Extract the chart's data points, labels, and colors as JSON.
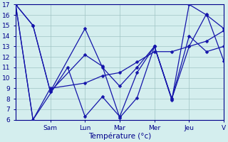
{
  "background_color": "#d4eeee",
  "grid_color": "#a0c4c4",
  "line_color": "#1414aa",
  "xlabel": "Température (°c)",
  "ylim": [
    6,
    17
  ],
  "yticks": [
    6,
    7,
    8,
    9,
    10,
    11,
    12,
    13,
    14,
    15,
    16,
    17
  ],
  "n_cols": 24,
  "day_tick_positions": [
    4,
    8,
    12,
    16,
    20,
    24
  ],
  "day_labels": [
    "Sam",
    "Lun",
    "Mar",
    "Mer",
    "Jeu",
    "V"
  ],
  "series": [
    {
      "x": [
        0,
        2,
        4,
        8,
        10,
        12,
        14,
        16,
        18,
        20,
        22,
        24
      ],
      "y": [
        17,
        15,
        8.7,
        14.7,
        11,
        9.2,
        11,
        13,
        8,
        14,
        12.5,
        13
      ]
    },
    {
      "x": [
        0,
        2,
        6,
        8,
        10,
        12,
        14,
        16,
        18,
        20,
        22,
        24
      ],
      "y": [
        17,
        6,
        11,
        6.3,
        8.2,
        6.3,
        10.5,
        13,
        7.9,
        17,
        16,
        14.7
      ]
    },
    {
      "x": [
        0,
        2,
        4,
        8,
        10,
        12,
        14,
        16,
        18,
        20,
        22,
        24
      ],
      "y": [
        17,
        15,
        8.7,
        12.2,
        11.1,
        6.2,
        8.1,
        13,
        8,
        13,
        16.1,
        11.6
      ]
    },
    {
      "x": [
        0,
        2,
        4,
        8,
        10,
        12,
        14,
        16,
        18,
        20,
        22,
        24
      ],
      "y": [
        17,
        6,
        9,
        9.5,
        10.2,
        10.5,
        11.5,
        12.5,
        12.5,
        13,
        13.5,
        14.5
      ]
    }
  ]
}
